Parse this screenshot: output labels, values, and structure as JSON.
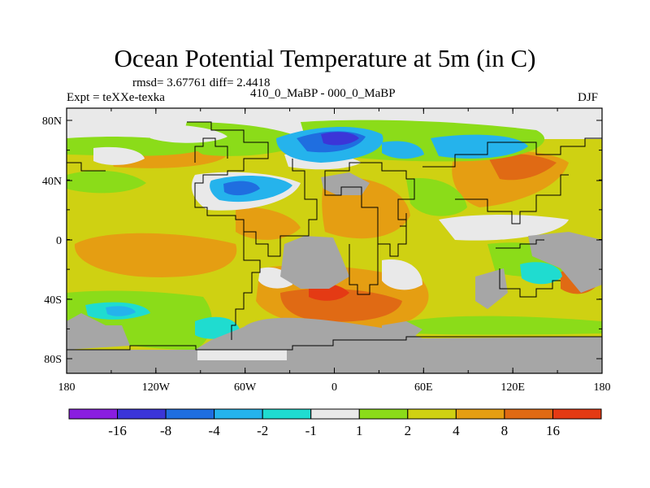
{
  "plot": {
    "title": "Ocean Potential Temperature at 5m (in C)",
    "stats": "rmsd= 3.67761  diff= 2.4418",
    "expt": "Expt = teXXe-texka",
    "period_label": "410_0_MaBP - 000_0_MaBP",
    "season": "DJF"
  },
  "axes": {
    "x_ticks": [
      "180",
      "120W",
      "60W",
      "0",
      "60E",
      "120E",
      "180"
    ],
    "y_ticks": [
      "80N",
      "40N",
      "0",
      "40S",
      "80S"
    ]
  },
  "colorbar": {
    "labels": [
      "-16",
      "-8",
      "-4",
      "-2",
      "-1",
      "1",
      "2",
      "4",
      "8",
      "16"
    ],
    "colors": [
      "#8a1de0",
      "#3b35d8",
      "#1f6ee0",
      "#25b3ec",
      "#1fdcd0",
      "#e9e9e9",
      "#8bdc19",
      "#cfd112",
      "#e59e12",
      "#e06a14",
      "#e43a14"
    ]
  },
  "colors": {
    "land": "#a6a6a6",
    "no_data": "#e9e9e9",
    "coast": "#000000"
  }
}
